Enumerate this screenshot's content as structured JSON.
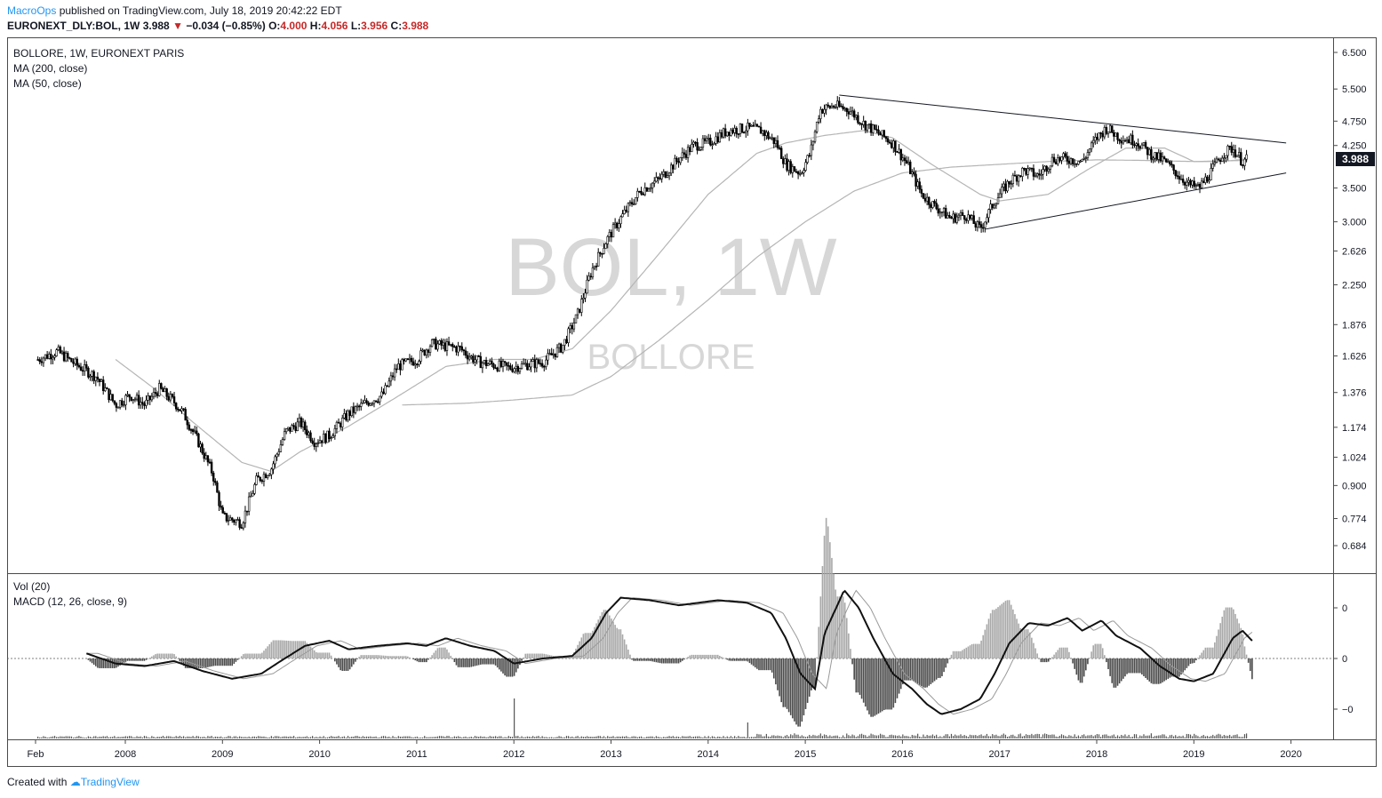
{
  "header": {
    "author": "MacroOps",
    "published": " published on TradingView.com, July 18, 2019 20:42:22 EDT",
    "symbol_line": "EURONEXT_DLY:BOL, 1W",
    "last": "3.988",
    "down_arrow": "▼",
    "change": "−0.034 (−0.85%)",
    "o_label": "O:",
    "o": "4.000",
    "h_label": "H:",
    "h": "4.056",
    "l_label": "L:",
    "l": "3.956",
    "c_label": "C:",
    "c": "3.988"
  },
  "legend": {
    "main": "BOLLORE, 1W, EURONEXT PARIS",
    "ma200": "MA (200, close)",
    "ma50": "MA (50, close)",
    "vol": "Vol (20)",
    "macd": "MACD (12, 26, close, 9)"
  },
  "watermark": {
    "big": "BOL, 1W",
    "small": "BOLLORE"
  },
  "price_badge": "3.988",
  "footer": {
    "created": "Created with",
    "brand": "TradingView"
  },
  "colors": {
    "candle": "#000000",
    "ma": "#b5b5b5",
    "macd_line": "#111111",
    "signal_line": "#9a9a9a",
    "hist_pos": "#a8a8a8",
    "hist_neg": "#4a4a4a",
    "watermark": "#d7d7d7",
    "author": "#2196f3"
  },
  "chart_data": [
    {
      "type": "candlestick",
      "title": "BOLLORE, 1W, EURONEXT PARIS",
      "y_scale": "log",
      "y_ticks": [
        "6.500",
        "5.500",
        "4.750",
        "4.250",
        "3.500",
        "3.000",
        "2.626",
        "2.250",
        "1.876",
        "1.626",
        "1.376",
        "1.174",
        "1.024",
        "0.900",
        "0.774",
        "0.684"
      ],
      "x_ticks": [
        "Feb",
        "2008",
        "2009",
        "2010",
        "2011",
        "2012",
        "2013",
        "2014",
        "2015",
        "2016",
        "2017",
        "2018",
        "2019",
        "2020"
      ],
      "price_path": [
        [
          2007.1,
          1.6
        ],
        [
          2007.3,
          1.66
        ],
        [
          2007.5,
          1.56
        ],
        [
          2007.7,
          1.48
        ],
        [
          2007.9,
          1.3
        ],
        [
          2008.05,
          1.36
        ],
        [
          2008.2,
          1.3
        ],
        [
          2008.35,
          1.4
        ],
        [
          2008.5,
          1.32
        ],
        [
          2008.6,
          1.25
        ],
        [
          2008.75,
          1.1
        ],
        [
          2008.9,
          0.95
        ],
        [
          2009.0,
          0.78
        ],
        [
          2009.2,
          0.76
        ],
        [
          2009.35,
          0.92
        ],
        [
          2009.5,
          0.97
        ],
        [
          2009.65,
          1.15
        ],
        [
          2009.8,
          1.2
        ],
        [
          2009.95,
          1.1
        ],
        [
          2010.1,
          1.13
        ],
        [
          2010.3,
          1.25
        ],
        [
          2010.5,
          1.32
        ],
        [
          2010.65,
          1.36
        ],
        [
          2010.8,
          1.55
        ],
        [
          2011.0,
          1.6
        ],
        [
          2011.15,
          1.72
        ],
        [
          2011.3,
          1.7
        ],
        [
          2011.45,
          1.68
        ],
        [
          2011.55,
          1.62
        ],
        [
          2011.65,
          1.58
        ],
        [
          2011.8,
          1.56
        ],
        [
          2011.95,
          1.54
        ],
        [
          2012.1,
          1.56
        ],
        [
          2012.3,
          1.58
        ],
        [
          2012.5,
          1.7
        ],
        [
          2012.65,
          1.95
        ],
        [
          2012.8,
          2.4
        ],
        [
          2012.95,
          2.75
        ],
        [
          2013.1,
          3.05
        ],
        [
          2013.3,
          3.45
        ],
        [
          2013.5,
          3.65
        ],
        [
          2013.7,
          4.0
        ],
        [
          2013.85,
          4.25
        ],
        [
          2014.0,
          4.3
        ],
        [
          2014.2,
          4.55
        ],
        [
          2014.4,
          4.6
        ],
        [
          2014.55,
          4.55
        ],
        [
          2014.7,
          4.3
        ],
        [
          2014.8,
          3.9
        ],
        [
          2014.95,
          3.75
        ],
        [
          2015.05,
          4.1
        ],
        [
          2015.15,
          5.0
        ],
        [
          2015.3,
          5.1
        ],
        [
          2015.45,
          5.0
        ],
        [
          2015.6,
          4.7
        ],
        [
          2015.75,
          4.5
        ],
        [
          2015.9,
          4.3
        ],
        [
          2016.05,
          3.9
        ],
        [
          2016.2,
          3.4
        ],
        [
          2016.35,
          3.2
        ],
        [
          2016.5,
          3.05
        ],
        [
          2016.65,
          3.1
        ],
        [
          2016.8,
          2.9
        ],
        [
          2016.95,
          3.3
        ],
        [
          2017.1,
          3.6
        ],
        [
          2017.25,
          3.8
        ],
        [
          2017.4,
          3.7
        ],
        [
          2017.55,
          4.0
        ],
        [
          2017.7,
          4.0
        ],
        [
          2017.85,
          3.95
        ],
        [
          2018.0,
          4.4
        ],
        [
          2018.1,
          4.6
        ],
        [
          2018.25,
          4.4
        ],
        [
          2018.4,
          4.35
        ],
        [
          2018.55,
          4.1
        ],
        [
          2018.7,
          3.95
        ],
        [
          2018.85,
          3.7
        ],
        [
          2018.95,
          3.55
        ],
        [
          2019.05,
          3.5
        ],
        [
          2019.15,
          3.7
        ],
        [
          2019.3,
          4.1
        ],
        [
          2019.4,
          4.2
        ],
        [
          2019.5,
          3.95
        ],
        [
          2019.55,
          3.99
        ]
      ],
      "ma50_path": [
        [
          2007.9,
          1.6
        ],
        [
          2008.3,
          1.4
        ],
        [
          2008.7,
          1.2
        ],
        [
          2009.2,
          1.0
        ],
        [
          2009.5,
          0.96
        ],
        [
          2009.8,
          1.05
        ],
        [
          2010.3,
          1.18
        ],
        [
          2010.8,
          1.35
        ],
        [
          2011.3,
          1.55
        ],
        [
          2011.8,
          1.6
        ],
        [
          2012.2,
          1.6
        ],
        [
          2012.6,
          1.68
        ],
        [
          2013.0,
          2.0
        ],
        [
          2013.5,
          2.6
        ],
        [
          2014.0,
          3.4
        ],
        [
          2014.5,
          4.1
        ],
        [
          2014.8,
          4.3
        ],
        [
          2015.2,
          4.45
        ],
        [
          2015.6,
          4.55
        ],
        [
          2015.9,
          4.4
        ],
        [
          2016.3,
          3.9
        ],
        [
          2016.8,
          3.4
        ],
        [
          2017.0,
          3.3
        ],
        [
          2017.5,
          3.4
        ],
        [
          2017.9,
          3.8
        ],
        [
          2018.3,
          4.2
        ],
        [
          2018.7,
          4.2
        ],
        [
          2019.0,
          3.95
        ],
        [
          2019.3,
          3.95
        ],
        [
          2019.55,
          4.0
        ]
      ],
      "ma200_path": [
        [
          2010.85,
          1.3
        ],
        [
          2011.5,
          1.31
        ],
        [
          2012.0,
          1.33
        ],
        [
          2012.6,
          1.36
        ],
        [
          2013.0,
          1.48
        ],
        [
          2013.5,
          1.75
        ],
        [
          2014.0,
          2.1
        ],
        [
          2014.5,
          2.55
        ],
        [
          2015.0,
          3.0
        ],
        [
          2015.5,
          3.45
        ],
        [
          2016.0,
          3.75
        ],
        [
          2016.5,
          3.85
        ],
        [
          2017.0,
          3.9
        ],
        [
          2017.5,
          3.95
        ],
        [
          2018.0,
          3.98
        ],
        [
          2018.5,
          3.97
        ],
        [
          2019.0,
          3.95
        ],
        [
          2019.55,
          3.97
        ]
      ],
      "trendlines": [
        {
          "from": [
            2015.35,
            5.35
          ],
          "to": [
            2019.95,
            4.3
          ]
        },
        {
          "from": [
            2016.85,
            2.9
          ],
          "to": [
            2019.95,
            3.75
          ]
        }
      ]
    },
    {
      "type": "line",
      "title": "MACD (12, 26, close, 9)",
      "y_ticks": [
        "0",
        "0",
        "−0"
      ],
      "macd_path": [
        [
          2007.6,
          0.1
        ],
        [
          2007.9,
          -0.1
        ],
        [
          2008.2,
          -0.15
        ],
        [
          2008.5,
          -0.05
        ],
        [
          2008.8,
          -0.25
        ],
        [
          2009.1,
          -0.4
        ],
        [
          2009.4,
          -0.3
        ],
        [
          2009.6,
          -0.05
        ],
        [
          2009.85,
          0.25
        ],
        [
          2010.1,
          0.35
        ],
        [
          2010.3,
          0.18
        ],
        [
          2010.6,
          0.25
        ],
        [
          2010.9,
          0.3
        ],
        [
          2011.1,
          0.25
        ],
        [
          2011.3,
          0.4
        ],
        [
          2011.55,
          0.25
        ],
        [
          2011.8,
          0.15
        ],
        [
          2012.0,
          -0.1
        ],
        [
          2012.3,
          0.0
        ],
        [
          2012.6,
          0.05
        ],
        [
          2012.8,
          0.4
        ],
        [
          2012.95,
          0.9
        ],
        [
          2013.1,
          1.2
        ],
        [
          2013.4,
          1.15
        ],
        [
          2013.7,
          1.05
        ],
        [
          2013.9,
          1.1
        ],
        [
          2014.1,
          1.15
        ],
        [
          2014.4,
          1.1
        ],
        [
          2014.65,
          0.9
        ],
        [
          2014.8,
          0.4
        ],
        [
          2014.95,
          -0.3
        ],
        [
          2015.1,
          -0.6
        ],
        [
          2015.2,
          0.5
        ],
        [
          2015.4,
          1.35
        ],
        [
          2015.55,
          1.0
        ],
        [
          2015.7,
          0.4
        ],
        [
          2015.9,
          -0.3
        ],
        [
          2016.1,
          -0.6
        ],
        [
          2016.25,
          -0.9
        ],
        [
          2016.4,
          -1.1
        ],
        [
          2016.6,
          -1.0
        ],
        [
          2016.8,
          -0.8
        ],
        [
          2016.95,
          -0.3
        ],
        [
          2017.1,
          0.3
        ],
        [
          2017.3,
          0.7
        ],
        [
          2017.5,
          0.65
        ],
        [
          2017.7,
          0.8
        ],
        [
          2017.85,
          0.55
        ],
        [
          2018.05,
          0.75
        ],
        [
          2018.2,
          0.45
        ],
        [
          2018.45,
          0.2
        ],
        [
          2018.65,
          -0.15
        ],
        [
          2018.85,
          -0.4
        ],
        [
          2019.0,
          -0.45
        ],
        [
          2019.2,
          -0.3
        ],
        [
          2019.4,
          0.4
        ],
        [
          2019.5,
          0.55
        ],
        [
          2019.6,
          0.35
        ]
      ]
    }
  ]
}
